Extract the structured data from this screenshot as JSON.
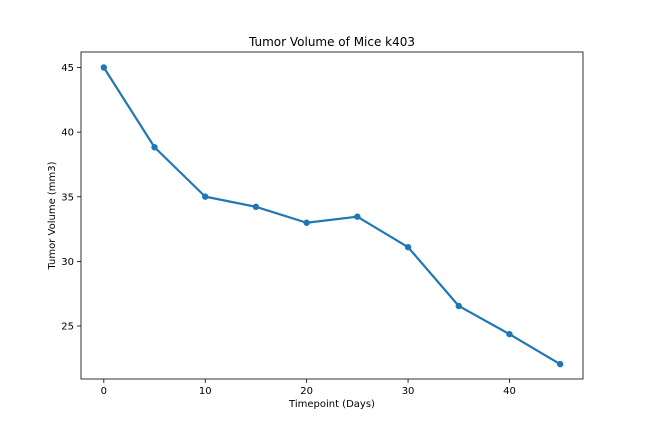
{
  "chart_data": {
    "type": "line",
    "title": "Tumor Volume of Mice k403",
    "xlabel": "Timepoint (Days)",
    "ylabel": "Tumor Volume (mm3)",
    "x": [
      0,
      5,
      10,
      15,
      20,
      25,
      30,
      35,
      40,
      45
    ],
    "series": [
      {
        "values": [
          45.0,
          38.83,
          35.01,
          34.22,
          32.99,
          33.46,
          31.1,
          26.55,
          24.37,
          22.05
        ]
      }
    ],
    "xlim": [
      -2.25,
      47.25
    ],
    "ylim": [
      20.9,
      46.2
    ],
    "xticks": [
      0,
      10,
      20,
      30,
      40
    ],
    "yticks": [
      25,
      30,
      35,
      40,
      45
    ],
    "grid": false,
    "legend": "none",
    "colors": {
      "line": "#1f77b4",
      "axis": "#000000"
    }
  }
}
